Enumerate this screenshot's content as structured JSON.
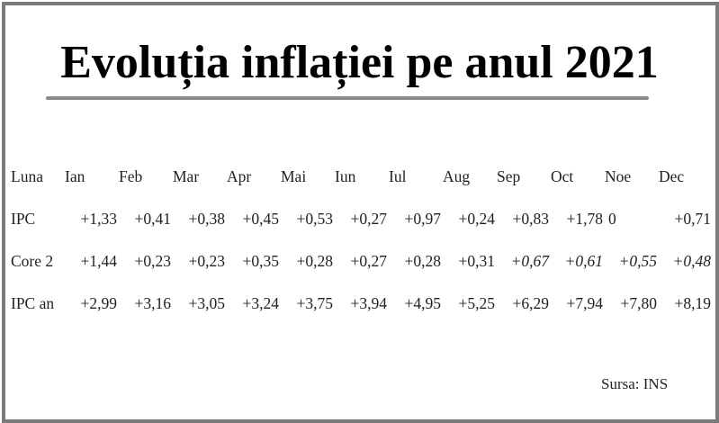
{
  "title": "Evoluția inflației pe anul 2021",
  "table": {
    "row_label_header": "Luna",
    "months": [
      "Ian",
      "Feb",
      "Mar",
      "Apr",
      "Mai",
      "Iun",
      "Iul",
      "Aug",
      "Sep",
      "Oct",
      "Noe",
      "Dec"
    ],
    "rows": [
      {
        "label": "IPC",
        "values": [
          "+1,33",
          "+0,41",
          "+0,38",
          "+0,45",
          "+0,53",
          "+0,27",
          "+0,97",
          "+0,24",
          "+0,83",
          "+1,78",
          "0",
          "+0,71"
        ]
      },
      {
        "label": "Core 2",
        "values": [
          "+1,44",
          "+0,23",
          "+0,23",
          "+0,35",
          "+0,28",
          "+0,27",
          "+0,28",
          "+0,31",
          "+0,67",
          "+0,61",
          "+0,55",
          "+0,48"
        ]
      },
      {
        "label": "IPC an",
        "values": [
          "+2,99",
          "+3,16",
          "+3,05",
          "+3,24",
          "+3,75",
          "+3,94",
          "+4,95",
          "+5,25",
          "+6,29",
          "+7,94",
          "+7,80",
          "+8,19"
        ]
      }
    ]
  },
  "source": "Sursa: INS"
}
